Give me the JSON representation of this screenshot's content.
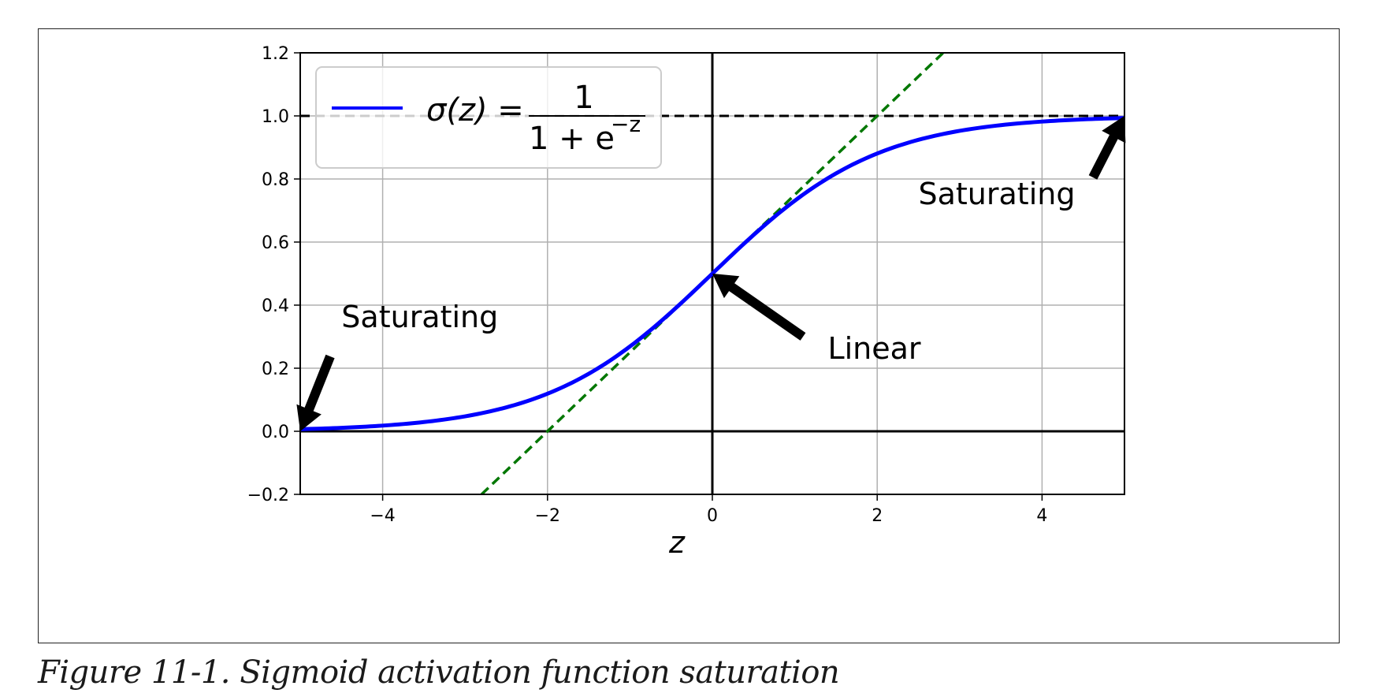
{
  "caption": "Figure 11-1. Sigmoid activation function saturation",
  "chart_data": {
    "type": "line",
    "title": "",
    "xlabel": "z",
    "ylabel": "",
    "xlim": [
      -5,
      5
    ],
    "ylim": [
      -0.2,
      1.2
    ],
    "xticks": [
      -4,
      -2,
      0,
      2,
      4
    ],
    "xtick_labels": [
      "−4",
      "−2",
      "0",
      "2",
      "4"
    ],
    "yticks": [
      -0.2,
      0.0,
      0.2,
      0.4,
      0.6,
      0.8,
      1.0,
      1.2
    ],
    "ytick_labels": [
      "−0.2",
      "0.0",
      "0.2",
      "0.4",
      "0.6",
      "0.8",
      "1.0",
      "1.2"
    ],
    "grid": true,
    "legend_position": "top-left",
    "legend": {
      "lhs": "σ(z) =",
      "numerator": "1",
      "denominator_base": "1 + e",
      "denominator_exponent": "−z"
    },
    "series": [
      {
        "function": "sigmoid",
        "color": "#0000ff",
        "style": "solid",
        "x": [
          -5,
          -4.5,
          -4,
          -3.5,
          -3,
          -2.5,
          -2,
          -1.5,
          -1,
          -0.5,
          0,
          0.5,
          1,
          1.5,
          2,
          2.5,
          3,
          3.5,
          4,
          4.5,
          5
        ],
        "y": [
          0.0067,
          0.011,
          0.018,
          0.0293,
          0.0474,
          0.0759,
          0.1192,
          0.1824,
          0.2689,
          0.3775,
          0.5,
          0.6225,
          0.7311,
          0.8176,
          0.8808,
          0.9241,
          0.9526,
          0.9707,
          0.982,
          0.989,
          0.9933
        ]
      },
      {
        "function": "tangent",
        "color": "#007700",
        "style": "dashed",
        "x": [
          -2.8,
          2.8
        ],
        "y": [
          -0.2,
          1.2
        ]
      },
      {
        "function": "horizontal-asymptote",
        "color": "#000000",
        "style": "dashed",
        "x": [
          -5,
          5
        ],
        "y": [
          1,
          1
        ]
      },
      {
        "function": "x-axis-line",
        "color": "#000000",
        "style": "solid",
        "x": [
          -5,
          5
        ],
        "y": [
          0,
          0
        ]
      },
      {
        "function": "y-axis-line",
        "color": "#000000",
        "style": "solid",
        "x": [
          0,
          0
        ],
        "y": [
          -0.2,
          1.2
        ]
      }
    ],
    "annotations": [
      {
        "text": "Saturating",
        "target": [
          -5,
          0
        ],
        "text_at": [
          -4.5,
          0.33
        ]
      },
      {
        "text": "Saturating",
        "target": [
          5,
          1
        ],
        "text_at": [
          2.5,
          0.72
        ]
      },
      {
        "text": "Linear",
        "target": [
          0,
          0.5
        ],
        "text_at": [
          1.4,
          0.23
        ]
      }
    ]
  }
}
